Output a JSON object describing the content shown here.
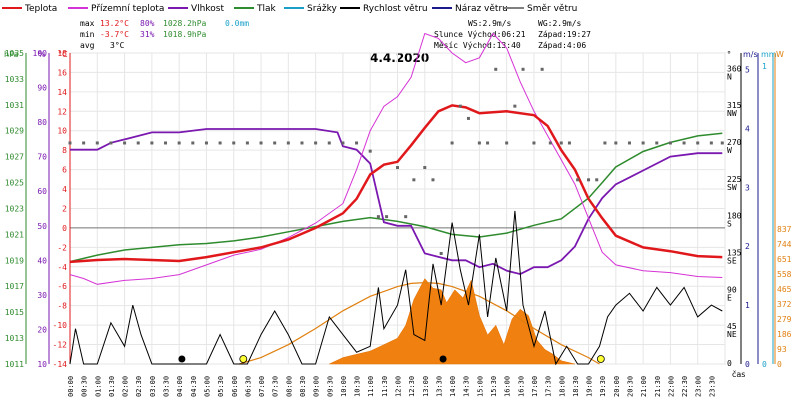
{
  "chart_data": {
    "type": "line",
    "title": "4.4.2020",
    "legend": [
      {
        "name": "Teplota",
        "color": "#e0181b"
      },
      {
        "name": "Přízemní teplota",
        "color": "#d633d6"
      },
      {
        "name": "Vlhkost",
        "color": "#7a18b0"
      },
      {
        "name": "Tlak",
        "color": "#2e8b2e"
      },
      {
        "name": "Srážky",
        "color": "#1aa0c8"
      },
      {
        "name": "Rychlost větru",
        "color": "#000000"
      },
      {
        "name": "Náraz větru",
        "color": "#1a1a8c"
      },
      {
        "name": "Směr větru",
        "color": "#808080"
      }
    ],
    "stats": {
      "max_label": "max",
      "max_temp": "13.2°C",
      "max_hum": "80%",
      "max_press": "1028.2hPa",
      "rain": "0.0mm",
      "min_label": "min",
      "min_temp": "-3.7°C",
      "min_hum": "31%",
      "min_press": "1018.9hPa",
      "avg_label": "avg",
      "avg_temp": "3°C",
      "ws": "WS:2.9m/s",
      "wg": "WG:2.9m/s",
      "sun": "Slunce Východ:06:21",
      "sun_set": "Západ:19:27",
      "moon": "Měsíc  Východ:13:40",
      "moon_set": "Západ:4:06"
    },
    "axes_units": {
      "hpa": "hPa",
      "pct": "%",
      "degc": "°C",
      "deg": "°",
      "ms": "m/s",
      "mm": "mm",
      "w": "W",
      "time": "čas"
    },
    "hpa_ticks": [
      "1035",
      "1033",
      "1031",
      "1029",
      "1027",
      "1025",
      "1023",
      "1021",
      "1019",
      "1017",
      "1015",
      "1013",
      "1011"
    ],
    "pct_ticks": [
      "100",
      "90",
      "80",
      "70",
      "60",
      "50",
      "40",
      "30",
      "20",
      "10"
    ],
    "temp_ticks": [
      "18",
      "16",
      "14",
      "12",
      "10",
      "8",
      "6",
      "4",
      "2",
      "0",
      "-2",
      "-4",
      "-6",
      "-8",
      "-10",
      "-12",
      "-14"
    ],
    "dir_ticks": [
      {
        "v": "360",
        "l": "N"
      },
      {
        "v": "315",
        "l": "NW"
      },
      {
        "v": "270",
        "l": "W"
      },
      {
        "v": "225",
        "l": "SW"
      },
      {
        "v": "180",
        "l": "S"
      },
      {
        "v": "135",
        "l": "SE"
      },
      {
        "v": "90",
        "l": "E"
      },
      {
        "v": "45",
        "l": "NE"
      },
      {
        "v": "0",
        "l": ""
      }
    ],
    "ms_ticks": [
      "5",
      "4",
      "3",
      "2",
      "1",
      "0"
    ],
    "mm_ticks": [
      "1",
      "0"
    ],
    "w_ticks": [
      "837",
      "744",
      "651",
      "558",
      "465",
      "372",
      "279",
      "186",
      "93",
      "0"
    ],
    "time_ticks": [
      "00:00",
      "00:30",
      "01:00",
      "01:30",
      "02:00",
      "02:30",
      "03:00",
      "03:30",
      "04:00",
      "04:30",
      "05:00",
      "05:30",
      "06:00",
      "06:30",
      "07:00",
      "07:30",
      "08:00",
      "08:30",
      "09:00",
      "09:30",
      "10:00",
      "10:30",
      "11:00",
      "11:30",
      "12:00",
      "12:30",
      "13:00",
      "13:30",
      "14:00",
      "14:30",
      "15:00",
      "15:30",
      "16:00",
      "16:30",
      "17:00",
      "17:30",
      "18:00",
      "18:30",
      "19:00",
      "19:30",
      "20:00",
      "20:30",
      "21:00",
      "21:30",
      "22:00",
      "22:30",
      "23:00",
      "23:30"
    ],
    "temperature": [
      [
        0,
        -3.5
      ],
      [
        1,
        -3.3
      ],
      [
        2,
        -3.2
      ],
      [
        3,
        -3.3
      ],
      [
        4,
        -3.4
      ],
      [
        5,
        -3.0
      ],
      [
        6,
        -2.5
      ],
      [
        7,
        -2.0
      ],
      [
        8,
        -1.2
      ],
      [
        9,
        0
      ],
      [
        10,
        1.5
      ],
      [
        10.5,
        3.0
      ],
      [
        11,
        5.5
      ],
      [
        11.5,
        6.5
      ],
      [
        12,
        6.8
      ],
      [
        12.5,
        8.5
      ],
      [
        13,
        10.3
      ],
      [
        13.5,
        12.0
      ],
      [
        14,
        12.6
      ],
      [
        14.5,
        12.4
      ],
      [
        15,
        11.8
      ],
      [
        16,
        12.0
      ],
      [
        17,
        11.6
      ],
      [
        17.5,
        10.5
      ],
      [
        18,
        8.0
      ],
      [
        18.5,
        6.0
      ],
      [
        19,
        3.0
      ],
      [
        19.5,
        1.0
      ],
      [
        20,
        -0.8
      ],
      [
        21,
        -2.0
      ],
      [
        22,
        -2.4
      ],
      [
        23,
        -2.9
      ],
      [
        23.9,
        -3.0
      ]
    ],
    "ground_temp": [
      [
        0,
        -4.8
      ],
      [
        0.5,
        -5.2
      ],
      [
        1,
        -5.8
      ],
      [
        2,
        -5.4
      ],
      [
        3,
        -5.2
      ],
      [
        4,
        -4.8
      ],
      [
        5,
        -3.8
      ],
      [
        6,
        -2.8
      ],
      [
        7,
        -2.2
      ],
      [
        8,
        -1.0
      ],
      [
        9,
        0.5
      ],
      [
        10,
        2.5
      ],
      [
        10.5,
        6.0
      ],
      [
        11,
        10.0
      ],
      [
        11.5,
        12.5
      ],
      [
        12,
        13.5
      ],
      [
        12.5,
        15.5
      ],
      [
        13,
        20.0
      ],
      [
        13.5,
        19.5
      ],
      [
        14,
        18.0
      ],
      [
        14.5,
        17.0
      ],
      [
        15,
        17.5
      ],
      [
        15.5,
        20.0
      ],
      [
        16,
        18.5
      ],
      [
        16.5,
        15.0
      ],
      [
        17,
        12.0
      ],
      [
        17.5,
        9.5
      ],
      [
        18,
        7.0
      ],
      [
        18.5,
        4.5
      ],
      [
        19,
        1.0
      ],
      [
        19.5,
        -2.5
      ],
      [
        20,
        -3.8
      ],
      [
        21,
        -4.4
      ],
      [
        22,
        -4.6
      ],
      [
        23,
        -5.0
      ],
      [
        23.9,
        -5.1
      ]
    ],
    "humidity": [
      [
        0,
        72
      ],
      [
        1,
        72
      ],
      [
        1.5,
        74
      ],
      [
        2,
        75
      ],
      [
        3,
        77
      ],
      [
        4,
        77
      ],
      [
        5,
        78
      ],
      [
        6,
        78
      ],
      [
        7,
        78
      ],
      [
        8,
        78
      ],
      [
        9,
        78
      ],
      [
        9.8,
        77
      ],
      [
        10,
        73
      ],
      [
        10.5,
        72
      ],
      [
        11,
        68
      ],
      [
        11.5,
        51
      ],
      [
        12,
        50
      ],
      [
        12.5,
        50
      ],
      [
        13,
        42
      ],
      [
        13.5,
        41
      ],
      [
        14,
        40
      ],
      [
        14.5,
        40
      ],
      [
        15,
        38
      ],
      [
        15.5,
        39
      ],
      [
        16,
        37
      ],
      [
        16.5,
        36
      ],
      [
        17,
        38
      ],
      [
        17.5,
        38
      ],
      [
        18,
        40
      ],
      [
        18.5,
        44
      ],
      [
        19,
        52
      ],
      [
        19.5,
        58
      ],
      [
        20,
        62
      ],
      [
        20.5,
        64
      ],
      [
        21,
        66
      ],
      [
        22,
        70
      ],
      [
        23,
        71
      ],
      [
        23.9,
        71
      ]
    ],
    "pressure": [
      [
        0,
        1018.9
      ],
      [
        1,
        1019.4
      ],
      [
        2,
        1019.8
      ],
      [
        3,
        1020.0
      ],
      [
        4,
        1020.2
      ],
      [
        5,
        1020.3
      ],
      [
        6,
        1020.5
      ],
      [
        7,
        1020.8
      ],
      [
        8,
        1021.2
      ],
      [
        9,
        1021.6
      ],
      [
        10,
        1022.0
      ],
      [
        11,
        1022.3
      ],
      [
        12,
        1022.0
      ],
      [
        13,
        1021.6
      ],
      [
        14,
        1021.0
      ],
      [
        15,
        1020.8
      ],
      [
        16,
        1021.1
      ],
      [
        17,
        1021.7
      ],
      [
        18,
        1022.2
      ],
      [
        19,
        1023.8
      ],
      [
        19.5,
        1025.0
      ],
      [
        20,
        1026.2
      ],
      [
        21,
        1027.4
      ],
      [
        22,
        1028.1
      ],
      [
        23,
        1028.6
      ],
      [
        23.9,
        1028.8
      ]
    ],
    "wind_speed": [
      [
        0,
        0
      ],
      [
        0.2,
        0.6
      ],
      [
        0.5,
        0
      ],
      [
        1.0,
        0
      ],
      [
        1.5,
        0.7
      ],
      [
        2.0,
        0.3
      ],
      [
        2.3,
        1.0
      ],
      [
        2.6,
        0.5
      ],
      [
        3.0,
        0
      ],
      [
        3.5,
        0
      ],
      [
        4,
        0
      ],
      [
        4.5,
        0
      ],
      [
        5,
        0
      ],
      [
        5.5,
        0.5
      ],
      [
        6,
        0
      ],
      [
        6.5,
        0
      ],
      [
        6.8,
        0.3
      ],
      [
        7.0,
        0.5
      ],
      [
        7.5,
        0.9
      ],
      [
        8.0,
        0.5
      ],
      [
        8.5,
        0
      ],
      [
        9.0,
        0
      ],
      [
        9.5,
        0.8
      ],
      [
        10,
        0.5
      ],
      [
        10.5,
        0.2
      ],
      [
        11,
        0.3
      ],
      [
        11.3,
        1.3
      ],
      [
        11.5,
        0.6
      ],
      [
        12,
        1.0
      ],
      [
        12.3,
        1.6
      ],
      [
        12.6,
        0.5
      ],
      [
        13,
        0.4
      ],
      [
        13.3,
        1.7
      ],
      [
        13.6,
        1.0
      ],
      [
        14,
        2.4
      ],
      [
        14.3,
        1.6
      ],
      [
        14.6,
        1.0
      ],
      [
        15,
        2.2
      ],
      [
        15.3,
        0.8
      ],
      [
        15.6,
        1.8
      ],
      [
        16,
        0.9
      ],
      [
        16.3,
        2.6
      ],
      [
        16.6,
        1.0
      ],
      [
        17,
        0.3
      ],
      [
        17.4,
        0.9
      ],
      [
        17.8,
        0
      ],
      [
        18.2,
        0.3
      ],
      [
        18.6,
        0
      ],
      [
        19,
        0
      ],
      [
        19.4,
        0.3
      ],
      [
        19.7,
        0.8
      ],
      [
        20,
        1.0
      ],
      [
        20.5,
        1.2
      ],
      [
        21,
        0.9
      ],
      [
        21.5,
        1.3
      ],
      [
        22,
        1.0
      ],
      [
        22.5,
        1.3
      ],
      [
        23,
        0.8
      ],
      [
        23.5,
        1.0
      ],
      [
        23.9,
        0.9
      ]
    ],
    "solar": [
      [
        6.2,
        0
      ],
      [
        7,
        40
      ],
      [
        8,
        120
      ],
      [
        9,
        220
      ],
      [
        10,
        330
      ],
      [
        11,
        420
      ],
      [
        12,
        480
      ],
      [
        12.5,
        500
      ],
      [
        13,
        505
      ],
      [
        13.5,
        500
      ],
      [
        14,
        480
      ],
      [
        15,
        420
      ],
      [
        16,
        330
      ],
      [
        17,
        220
      ],
      [
        18,
        120
      ],
      [
        19,
        40
      ],
      [
        19.4,
        0
      ]
    ],
    "solar_measured": [
      [
        9.5,
        0
      ],
      [
        10,
        40
      ],
      [
        10.5,
        60
      ],
      [
        11,
        80
      ],
      [
        11.5,
        120
      ],
      [
        12,
        160
      ],
      [
        12.3,
        240
      ],
      [
        12.6,
        400
      ],
      [
        13,
        530
      ],
      [
        13.3,
        470
      ],
      [
        13.6,
        460
      ],
      [
        13.8,
        380
      ],
      [
        14.1,
        460
      ],
      [
        14.4,
        410
      ],
      [
        14.7,
        520
      ],
      [
        15,
        300
      ],
      [
        15.3,
        180
      ],
      [
        15.6,
        240
      ],
      [
        15.9,
        120
      ],
      [
        16.2,
        280
      ],
      [
        16.5,
        340
      ],
      [
        16.8,
        300
      ],
      [
        17.1,
        150
      ],
      [
        17.4,
        90
      ],
      [
        17.7,
        60
      ],
      [
        18,
        20
      ],
      [
        18.5,
        0
      ]
    ],
    "wind_dir_points": [
      [
        0,
        270
      ],
      [
        0.5,
        270
      ],
      [
        1,
        270
      ],
      [
        1.5,
        270
      ],
      [
        2,
        270
      ],
      [
        2.5,
        270
      ],
      [
        3,
        270
      ],
      [
        3.5,
        270
      ],
      [
        4,
        270
      ],
      [
        4.5,
        270
      ],
      [
        5,
        270
      ],
      [
        5.5,
        270
      ],
      [
        6,
        270
      ],
      [
        6.5,
        270
      ],
      [
        7,
        270
      ],
      [
        7.5,
        270
      ],
      [
        8,
        270
      ],
      [
        8.5,
        270
      ],
      [
        9,
        270
      ],
      [
        9.5,
        270
      ],
      [
        10,
        270
      ],
      [
        10.5,
        270
      ],
      [
        11,
        260
      ],
      [
        11.3,
        180
      ],
      [
        11.6,
        180
      ],
      [
        12,
        240
      ],
      [
        12.3,
        180
      ],
      [
        12.6,
        225
      ],
      [
        13,
        240
      ],
      [
        13.3,
        225
      ],
      [
        13.6,
        135
      ],
      [
        14,
        270
      ],
      [
        14.3,
        315
      ],
      [
        14.6,
        300
      ],
      [
        15,
        270
      ],
      [
        15.3,
        270
      ],
      [
        15.6,
        360
      ],
      [
        16,
        270
      ],
      [
        16.3,
        315
      ],
      [
        16.6,
        360
      ],
      [
        17,
        270
      ],
      [
        17.3,
        360
      ],
      [
        17.6,
        270
      ],
      [
        18,
        270
      ],
      [
        18.3,
        270
      ],
      [
        18.6,
        225
      ],
      [
        19,
        225
      ],
      [
        19.3,
        225
      ],
      [
        19.6,
        270
      ],
      [
        20,
        270
      ],
      [
        20.5,
        270
      ],
      [
        21,
        270
      ],
      [
        21.5,
        270
      ],
      [
        22,
        270
      ],
      [
        22.5,
        270
      ],
      [
        23,
        270
      ],
      [
        23.5,
        270
      ],
      [
        23.9,
        270
      ]
    ],
    "sun_markers": [
      {
        "t": 6.35,
        "color": "#ffff33"
      },
      {
        "t": 19.45,
        "color": "#ffff33"
      }
    ],
    "moon_markers": [
      {
        "t": 4.1,
        "color": "#000000"
      },
      {
        "t": 13.67,
        "color": "#000000"
      }
    ]
  }
}
